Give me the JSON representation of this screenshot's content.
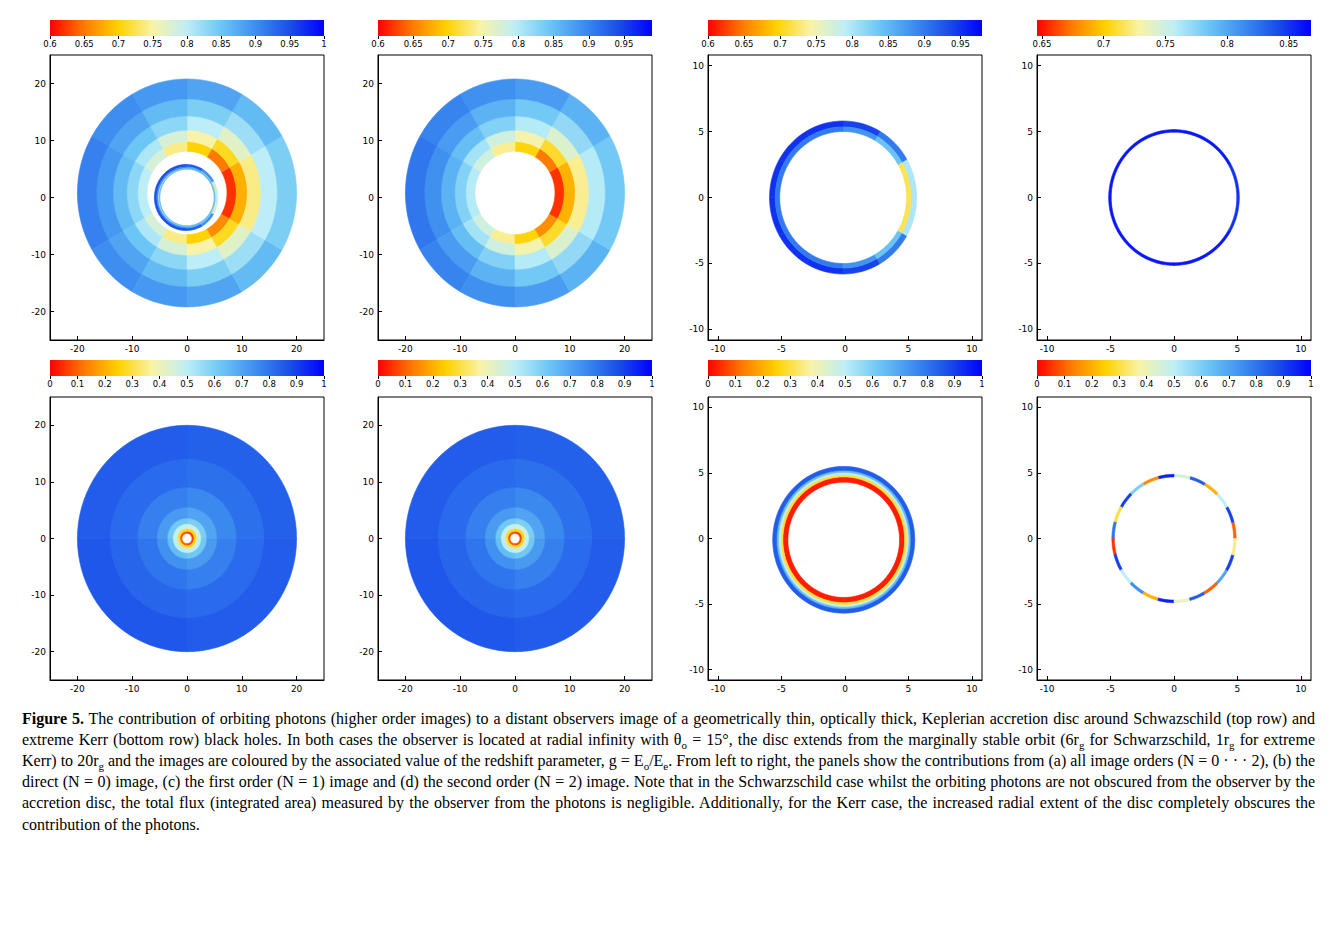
{
  "caption": [
    {
      "bold": "Figure 5."
    },
    " The contribution of orbiting photons (higher order images) to a distant observers image of a geometrically thin, optically thick, Keplerian accretion disc around Schwazschild (top row) and extreme Kerr (bottom row) black holes. In both cases the observer is located at radial infinity with θ",
    {
      "sub": "o"
    },
    " = 15°, the disc extends from the marginally stable orbit (6r",
    {
      "sub": "g"
    },
    " for Schwarzschild, 1r",
    {
      "sub": "g"
    },
    " for extreme Kerr) to 20r",
    {
      "sub": "g"
    },
    " and the images are coloured by the associated value of the redshift parameter, g = E",
    {
      "sub": "o"
    },
    "/E",
    {
      "sub": "e"
    },
    ". From left to right, the panels show the contributions from (a) all image orders (N = 0 · · · 2), (b) the direct (N = 0) image, (c) the first order (N = 1) image and (d) the second order (N = 2) image. Note that in the Schwarzschild case whilst the orbiting photons are not obscured from the observer by the accretion disc, the total flux (integrated area) measured by the observer from the photons is negligible. Additionally, for the Kerr case, the increased radial extent of the disc completely obscures the contribution of the photons."
  ],
  "colors": [
    "#ff0000",
    "#ff7a00",
    "#ffd200",
    "#f8f3a8",
    "#bdeef7",
    "#6cc6f5",
    "#3d8ef0",
    "#1a4fe8",
    "#0000ff"
  ],
  "chart_data": [
    {
      "type": "heatmap",
      "xlim": [
        -25,
        25
      ],
      "xticks": [
        -20,
        -10,
        0,
        10,
        20
      ],
      "ylim": [
        -25,
        25
      ],
      "yticks": [
        -20,
        -10,
        0,
        10,
        20
      ],
      "grid": false,
      "colorbar": {
        "range": [
          0.6,
          1
        ],
        "ticks": [
          0.6,
          0.65,
          0.7,
          0.75,
          0.8,
          0.85,
          0.9,
          0.95,
          1
        ]
      },
      "rings": [
        {
          "center": [
            0,
            0.8
          ],
          "r": [
            7.3,
            9
          ],
          "g": [
            0.62,
            0.65,
            0.7,
            0.74,
            0.78,
            0.8,
            0.8,
            0.78,
            0.74,
            0.7,
            0.66,
            0.62
          ]
        },
        {
          "center": [
            0,
            0.8
          ],
          "r": [
            9,
            11
          ],
          "g": [
            0.68,
            0.71,
            0.75,
            0.78,
            0.81,
            0.83,
            0.83,
            0.81,
            0.78,
            0.75,
            0.71,
            0.68
          ]
        },
        {
          "center": [
            0,
            0.8
          ],
          "r": [
            11,
            13.5
          ],
          "g": [
            0.74,
            0.77,
            0.8,
            0.83,
            0.85,
            0.86,
            0.86,
            0.85,
            0.83,
            0.8,
            0.77,
            0.74
          ]
        },
        {
          "center": [
            0,
            0.8
          ],
          "r": [
            13.5,
            16.5
          ],
          "g": [
            0.8,
            0.82,
            0.84,
            0.86,
            0.88,
            0.89,
            0.89,
            0.88,
            0.86,
            0.84,
            0.82,
            0.8
          ]
        },
        {
          "center": [
            0,
            0.8
          ],
          "r": [
            16.5,
            20
          ],
          "g": [
            0.84,
            0.86,
            0.88,
            0.89,
            0.9,
            0.91,
            0.91,
            0.9,
            0.89,
            0.88,
            0.86,
            0.84
          ]
        },
        {
          "center": [
            -0.15,
            0
          ],
          "r": [
            5.35,
            5.8
          ],
          "g": [
            0.8,
            0.9,
            0.94,
            0.95,
            0.95,
            0.95,
            0.95,
            0.95,
            0.95,
            0.94,
            0.9,
            0.8
          ]
        },
        {
          "center": [
            -0.15,
            0
          ],
          "r": [
            5.15,
            5.35
          ],
          "g": [
            0.72,
            0.84,
            0.88,
            0.9,
            0.9,
            0.9,
            0.9,
            0.9,
            0.9,
            0.88,
            0.84,
            0.72
          ]
        },
        {
          "center": [
            0,
            0
          ],
          "r": [
            4.95,
            5.1
          ],
          "g": [
            0.86,
            0.86,
            0.86,
            0.86,
            0.86,
            0.86,
            0.86,
            0.86,
            0.86,
            0.86,
            0.86,
            0.86
          ]
        }
      ]
    },
    {
      "type": "heatmap",
      "xlim": [
        -25,
        25
      ],
      "xticks": [
        -20,
        -10,
        0,
        10,
        20
      ],
      "ylim": [
        -25,
        25
      ],
      "yticks": [
        -20,
        -10,
        0,
        10,
        20
      ],
      "grid": false,
      "colorbar": {
        "range": [
          0.6,
          0.99
        ],
        "ticks": [
          0.6,
          0.65,
          0.7,
          0.75,
          0.8,
          0.85,
          0.9,
          0.95
        ]
      },
      "rings": [
        {
          "center": [
            0,
            0.8
          ],
          "r": [
            7.3,
            9
          ],
          "g": [
            0.62,
            0.65,
            0.7,
            0.74,
            0.78,
            0.8,
            0.8,
            0.78,
            0.74,
            0.7,
            0.66,
            0.62
          ]
        },
        {
          "center": [
            0,
            0.8
          ],
          "r": [
            9,
            11
          ],
          "g": [
            0.68,
            0.71,
            0.75,
            0.78,
            0.81,
            0.83,
            0.83,
            0.81,
            0.78,
            0.75,
            0.71,
            0.68
          ]
        },
        {
          "center": [
            0,
            0.8
          ],
          "r": [
            11,
            13.5
          ],
          "g": [
            0.74,
            0.77,
            0.8,
            0.83,
            0.85,
            0.86,
            0.86,
            0.85,
            0.83,
            0.8,
            0.77,
            0.74
          ]
        },
        {
          "center": [
            0,
            0.8
          ],
          "r": [
            13.5,
            16.5
          ],
          "g": [
            0.8,
            0.82,
            0.84,
            0.86,
            0.88,
            0.89,
            0.89,
            0.88,
            0.86,
            0.84,
            0.82,
            0.8
          ]
        },
        {
          "center": [
            0,
            0.8
          ],
          "r": [
            16.5,
            20
          ],
          "g": [
            0.84,
            0.86,
            0.88,
            0.89,
            0.9,
            0.91,
            0.91,
            0.9,
            0.89,
            0.88,
            0.86,
            0.84
          ]
        }
      ]
    },
    {
      "type": "heatmap",
      "xlim": [
        -10.8,
        10.8
      ],
      "xticks": [
        -10,
        -5,
        0,
        5,
        10
      ],
      "ylim": [
        -10.8,
        10.8
      ],
      "yticks": [
        -10,
        -5,
        0,
        5,
        10
      ],
      "grid": false,
      "colorbar": {
        "range": [
          0.6,
          0.98
        ],
        "ticks": [
          0.6,
          0.65,
          0.7,
          0.75,
          0.8,
          0.85,
          0.9,
          0.95
        ]
      },
      "rings": [
        {
          "center": [
            -0.15,
            0
          ],
          "r": [
            5.35,
            5.8
          ],
          "g": [
            0.8,
            0.9,
            0.94,
            0.95,
            0.95,
            0.95,
            0.95,
            0.95,
            0.95,
            0.94,
            0.9,
            0.8
          ]
        },
        {
          "center": [
            -0.15,
            0
          ],
          "r": [
            5.0,
            5.35
          ],
          "g": [
            0.72,
            0.84,
            0.88,
            0.9,
            0.9,
            0.9,
            0.9,
            0.9,
            0.9,
            0.88,
            0.84,
            0.72
          ]
        }
      ]
    },
    {
      "type": "heatmap",
      "xlim": [
        -10.8,
        10.8
      ],
      "xticks": [
        -10,
        -5,
        0,
        5,
        10
      ],
      "ylim": [
        -10.8,
        10.8
      ],
      "yticks": [
        -10,
        -5,
        0,
        5,
        10
      ],
      "grid": false,
      "colorbar": {
        "range": [
          0.646,
          0.868
        ],
        "ticks": [
          0.65,
          0.7,
          0.75,
          0.8,
          0.85
        ]
      },
      "rings": [
        {
          "center": [
            0,
            0
          ],
          "r": [
            4.95,
            5.15
          ],
          "g": [
            0.85,
            0.86,
            0.86,
            0.86,
            0.86,
            0.86,
            0.86,
            0.86,
            0.86,
            0.86,
            0.86,
            0.85
          ]
        }
      ]
    },
    {
      "type": "heatmap",
      "xlim": [
        -25,
        25
      ],
      "xticks": [
        -20,
        -10,
        0,
        10,
        20
      ],
      "ylim": [
        -25,
        25
      ],
      "yticks": [
        -20,
        -10,
        0,
        10,
        20
      ],
      "grid": false,
      "colorbar": {
        "range": [
          0,
          1
        ],
        "ticks": [
          0,
          0.1,
          0.2,
          0.3,
          0.4,
          0.5,
          0.6,
          0.7,
          0.8,
          0.9,
          1
        ]
      },
      "rings": [
        {
          "center": [
            0,
            0
          ],
          "r": [
            0.9,
            1.3
          ],
          "g": [
            0.06,
            0.08,
            0.1,
            0.08
          ]
        },
        {
          "center": [
            0,
            0
          ],
          "r": [
            1.3,
            1.8
          ],
          "g": [
            0.26,
            0.28,
            0.3,
            0.28
          ]
        },
        {
          "center": [
            0,
            0
          ],
          "r": [
            1.8,
            2.6
          ],
          "g": [
            0.46,
            0.48,
            0.5,
            0.48
          ]
        },
        {
          "center": [
            0,
            0
          ],
          "r": [
            2.6,
            3.6
          ],
          "g": [
            0.6,
            0.62,
            0.64,
            0.62
          ]
        },
        {
          "center": [
            0,
            0
          ],
          "r": [
            3.6,
            5.5
          ],
          "g": [
            0.7,
            0.72,
            0.74,
            0.72
          ]
        },
        {
          "center": [
            0,
            0
          ],
          "r": [
            5.5,
            9
          ],
          "g": [
            0.76,
            0.78,
            0.8,
            0.78
          ]
        },
        {
          "center": [
            0,
            0
          ],
          "r": [
            9,
            14
          ],
          "g": [
            0.81,
            0.82,
            0.83,
            0.82
          ]
        },
        {
          "center": [
            0,
            0
          ],
          "r": [
            14,
            20
          ],
          "g": [
            0.84,
            0.85,
            0.86,
            0.85
          ]
        }
      ]
    },
    {
      "type": "heatmap",
      "xlim": [
        -25,
        25
      ],
      "xticks": [
        -20,
        -10,
        0,
        10,
        20
      ],
      "ylim": [
        -25,
        25
      ],
      "yticks": [
        -20,
        -10,
        0,
        10,
        20
      ],
      "grid": false,
      "colorbar": {
        "range": [
          0,
          1
        ],
        "ticks": [
          0,
          0.1,
          0.2,
          0.3,
          0.4,
          0.5,
          0.6,
          0.7,
          0.8,
          0.9,
          1
        ]
      },
      "rings": [
        {
          "center": [
            0,
            0
          ],
          "r": [
            0.9,
            1.3
          ],
          "g": [
            0.06,
            0.08,
            0.1,
            0.08
          ]
        },
        {
          "center": [
            0,
            0
          ],
          "r": [
            1.3,
            1.8
          ],
          "g": [
            0.26,
            0.28,
            0.3,
            0.28
          ]
        },
        {
          "center": [
            0,
            0
          ],
          "r": [
            1.8,
            2.6
          ],
          "g": [
            0.46,
            0.48,
            0.5,
            0.48
          ]
        },
        {
          "center": [
            0,
            0
          ],
          "r": [
            2.6,
            3.6
          ],
          "g": [
            0.6,
            0.62,
            0.64,
            0.62
          ]
        },
        {
          "center": [
            0,
            0
          ],
          "r": [
            3.6,
            5.5
          ],
          "g": [
            0.7,
            0.72,
            0.74,
            0.72
          ]
        },
        {
          "center": [
            0,
            0
          ],
          "r": [
            5.5,
            9
          ],
          "g": [
            0.76,
            0.78,
            0.8,
            0.78
          ]
        },
        {
          "center": [
            0,
            0
          ],
          "r": [
            9,
            14
          ],
          "g": [
            0.81,
            0.82,
            0.83,
            0.82
          ]
        },
        {
          "center": [
            0,
            0
          ],
          "r": [
            14,
            20
          ],
          "g": [
            0.84,
            0.85,
            0.86,
            0.85
          ]
        }
      ]
    },
    {
      "type": "heatmap",
      "xlim": [
        -10.8,
        10.8
      ],
      "xticks": [
        -10,
        -5,
        0,
        5,
        10
      ],
      "ylim": [
        -10.8,
        10.8
      ],
      "yticks": [
        -10,
        -5,
        0,
        5,
        10
      ],
      "grid": false,
      "colorbar": {
        "range": [
          0,
          1
        ],
        "ticks": [
          0,
          0.1,
          0.2,
          0.3,
          0.4,
          0.5,
          0.6,
          0.7,
          0.8,
          0.9,
          1
        ]
      },
      "rings": [
        {
          "center": [
            -0.1,
            -0.1
          ],
          "r": [
            4.4,
            4.8
          ],
          "g": [
            0.03,
            0.03,
            0.03,
            0.03
          ]
        },
        {
          "center": [
            -0.1,
            -0.1
          ],
          "r": [
            4.8,
            5.0
          ],
          "g": [
            0.3,
            0.3,
            0.3,
            0.3
          ]
        },
        {
          "center": [
            -0.1,
            -0.1
          ],
          "r": [
            5.0,
            5.15
          ],
          "g": [
            0.5,
            0.5,
            0.5,
            0.5
          ]
        },
        {
          "center": [
            -0.1,
            -0.1
          ],
          "r": [
            5.15,
            5.3
          ],
          "g": [
            0.65,
            0.65,
            0.65,
            0.65
          ]
        },
        {
          "center": [
            -0.1,
            -0.1
          ],
          "r": [
            5.3,
            5.6
          ],
          "g": [
            0.85,
            0.85,
            0.85,
            0.85
          ]
        }
      ]
    },
    {
      "type": "heatmap",
      "xlim": [
        -10.8,
        10.8
      ],
      "xticks": [
        -10,
        -5,
        0,
        5,
        10
      ],
      "ylim": [
        -10.8,
        10.8
      ],
      "yticks": [
        -10,
        -5,
        0,
        5,
        10
      ],
      "grid": false,
      "colorbar": {
        "range": [
          0,
          1
        ],
        "ticks": [
          0,
          0.1,
          0.2,
          0.3,
          0.4,
          0.5,
          0.6,
          0.7,
          0.8,
          0.9,
          1
        ]
      },
      "rings": [
        {
          "center": [
            0,
            0
          ],
          "r": [
            4.7,
            4.9
          ],
          "g": [
            0.1,
            0.9,
            0.5,
            0.2,
            0.85,
            0.45,
            0.95,
            0.15,
            0.6,
            0.9,
            0.3,
            0.8,
            0.05,
            0.9,
            0.5,
            0.75,
            0.2,
            0.95,
            0.4,
            0.85,
            0.1,
            0.7,
            0.9,
            0.35
          ]
        }
      ]
    }
  ]
}
